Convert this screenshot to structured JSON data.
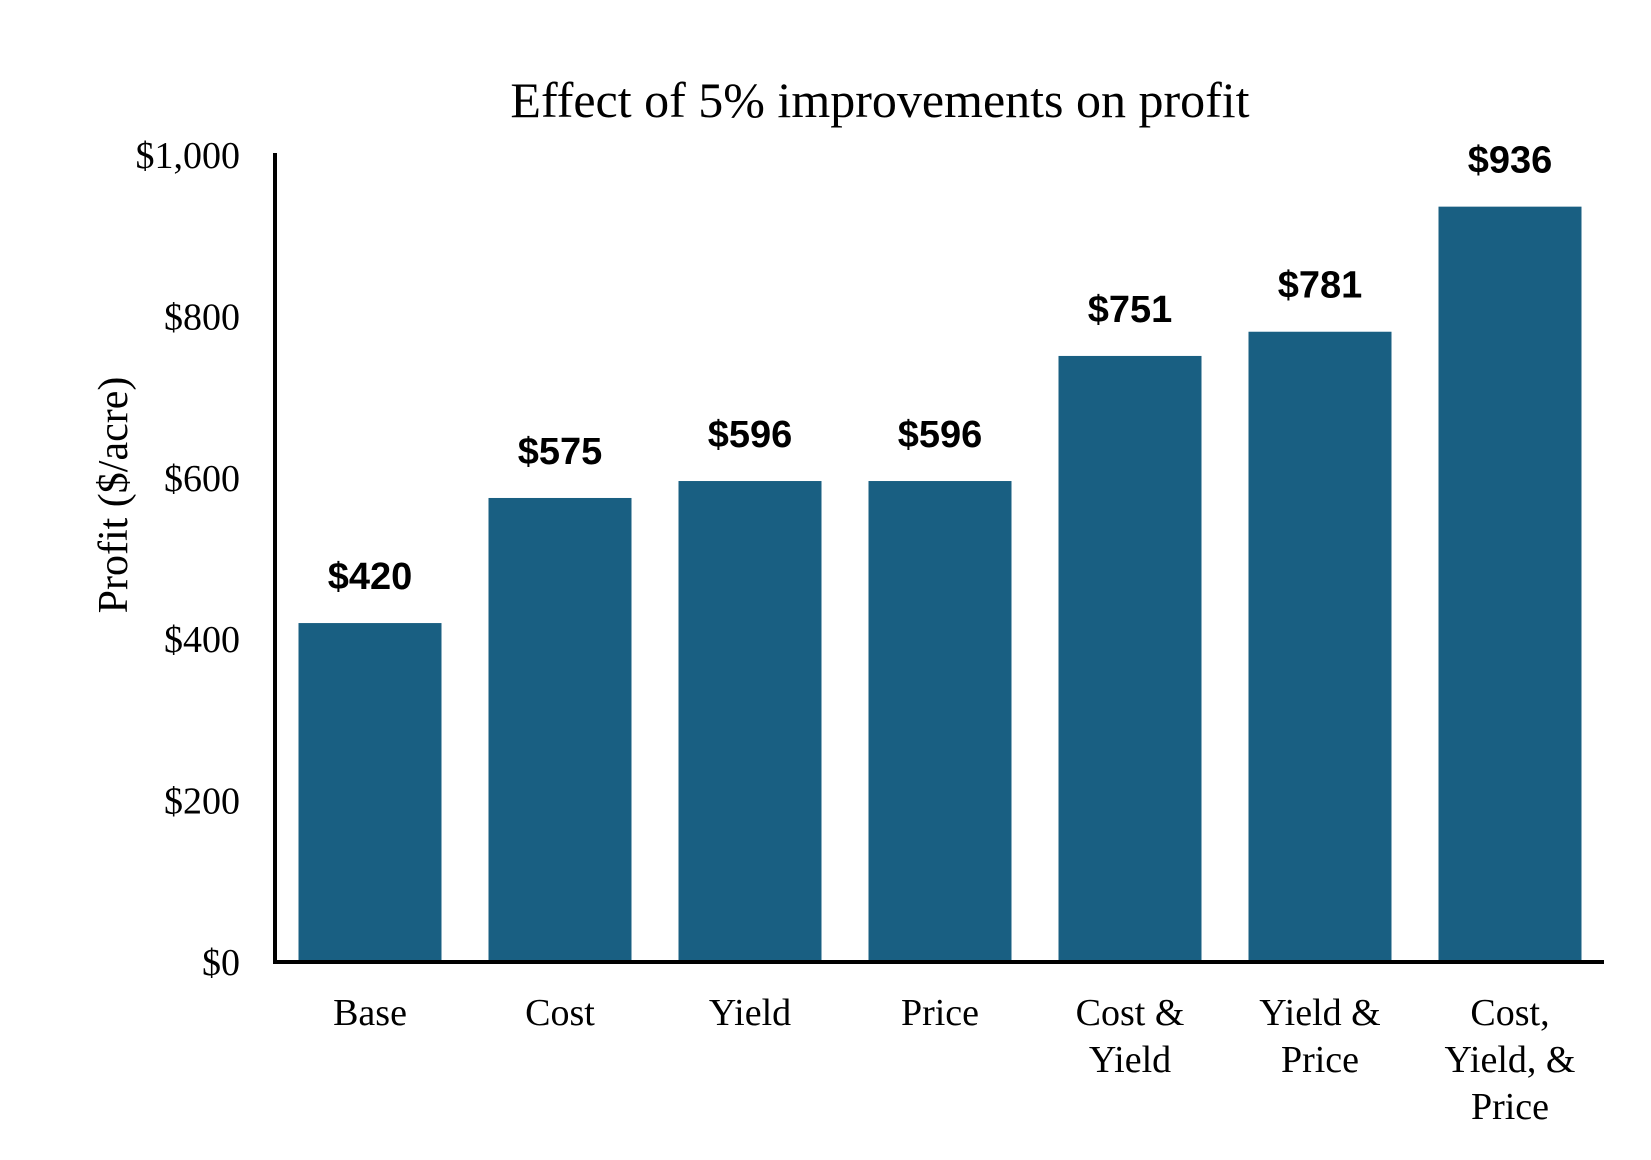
{
  "chart_data": {
    "type": "bar",
    "title": "Effect of 5% improvements on profit",
    "xlabel": "",
    "ylabel": "Profit ($/acre)",
    "ylim": [
      0,
      1000
    ],
    "yticks": [
      0,
      200,
      400,
      600,
      800,
      1000
    ],
    "ytick_labels": [
      "$0",
      "$200",
      "$400",
      "$600",
      "$800",
      "$1,000"
    ],
    "categories": [
      [
        "Base"
      ],
      [
        "Cost"
      ],
      [
        "Yield"
      ],
      [
        "Price"
      ],
      [
        "Cost &",
        "Yield"
      ],
      [
        "Yield &",
        "Price"
      ],
      [
        "Cost,",
        "Yield, &",
        "Price"
      ]
    ],
    "values": [
      420,
      575,
      596,
      596,
      751,
      781,
      936
    ],
    "value_labels": [
      "$420",
      "$575",
      "$596",
      "$596",
      "$751",
      "$781",
      "$936"
    ],
    "bar_color": "#195f82",
    "grid": false,
    "legend": "none"
  }
}
